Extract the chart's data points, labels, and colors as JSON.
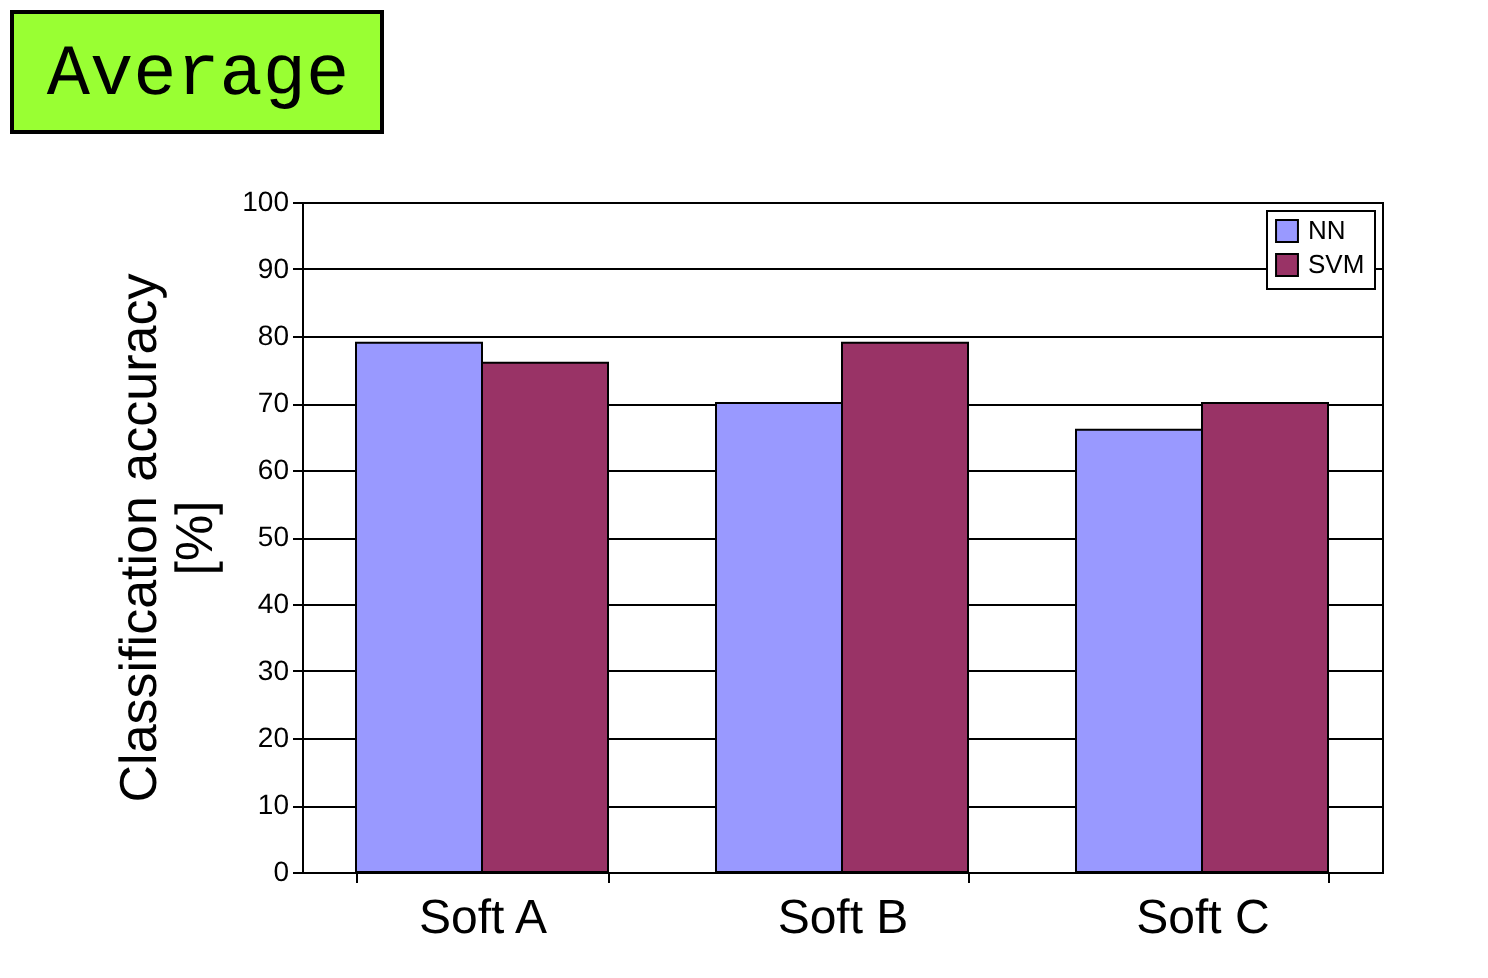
{
  "chart_data": {
    "type": "bar",
    "title": "Average",
    "ylabel": "Classification accuracy\n[%]",
    "categories": [
      "Soft A",
      "Soft B",
      "Soft C"
    ],
    "series": [
      {
        "name": "NN",
        "color": "#9999ff",
        "values": [
          79,
          70,
          66
        ]
      },
      {
        "name": "SVM",
        "color": "#993366",
        "values": [
          76,
          79,
          70
        ]
      }
    ],
    "ylim": [
      0,
      100
    ],
    "yticks": [
      0,
      10,
      20,
      30,
      40,
      50,
      60,
      70,
      80,
      90,
      100
    ],
    "grid": "y",
    "legend": "top right"
  }
}
